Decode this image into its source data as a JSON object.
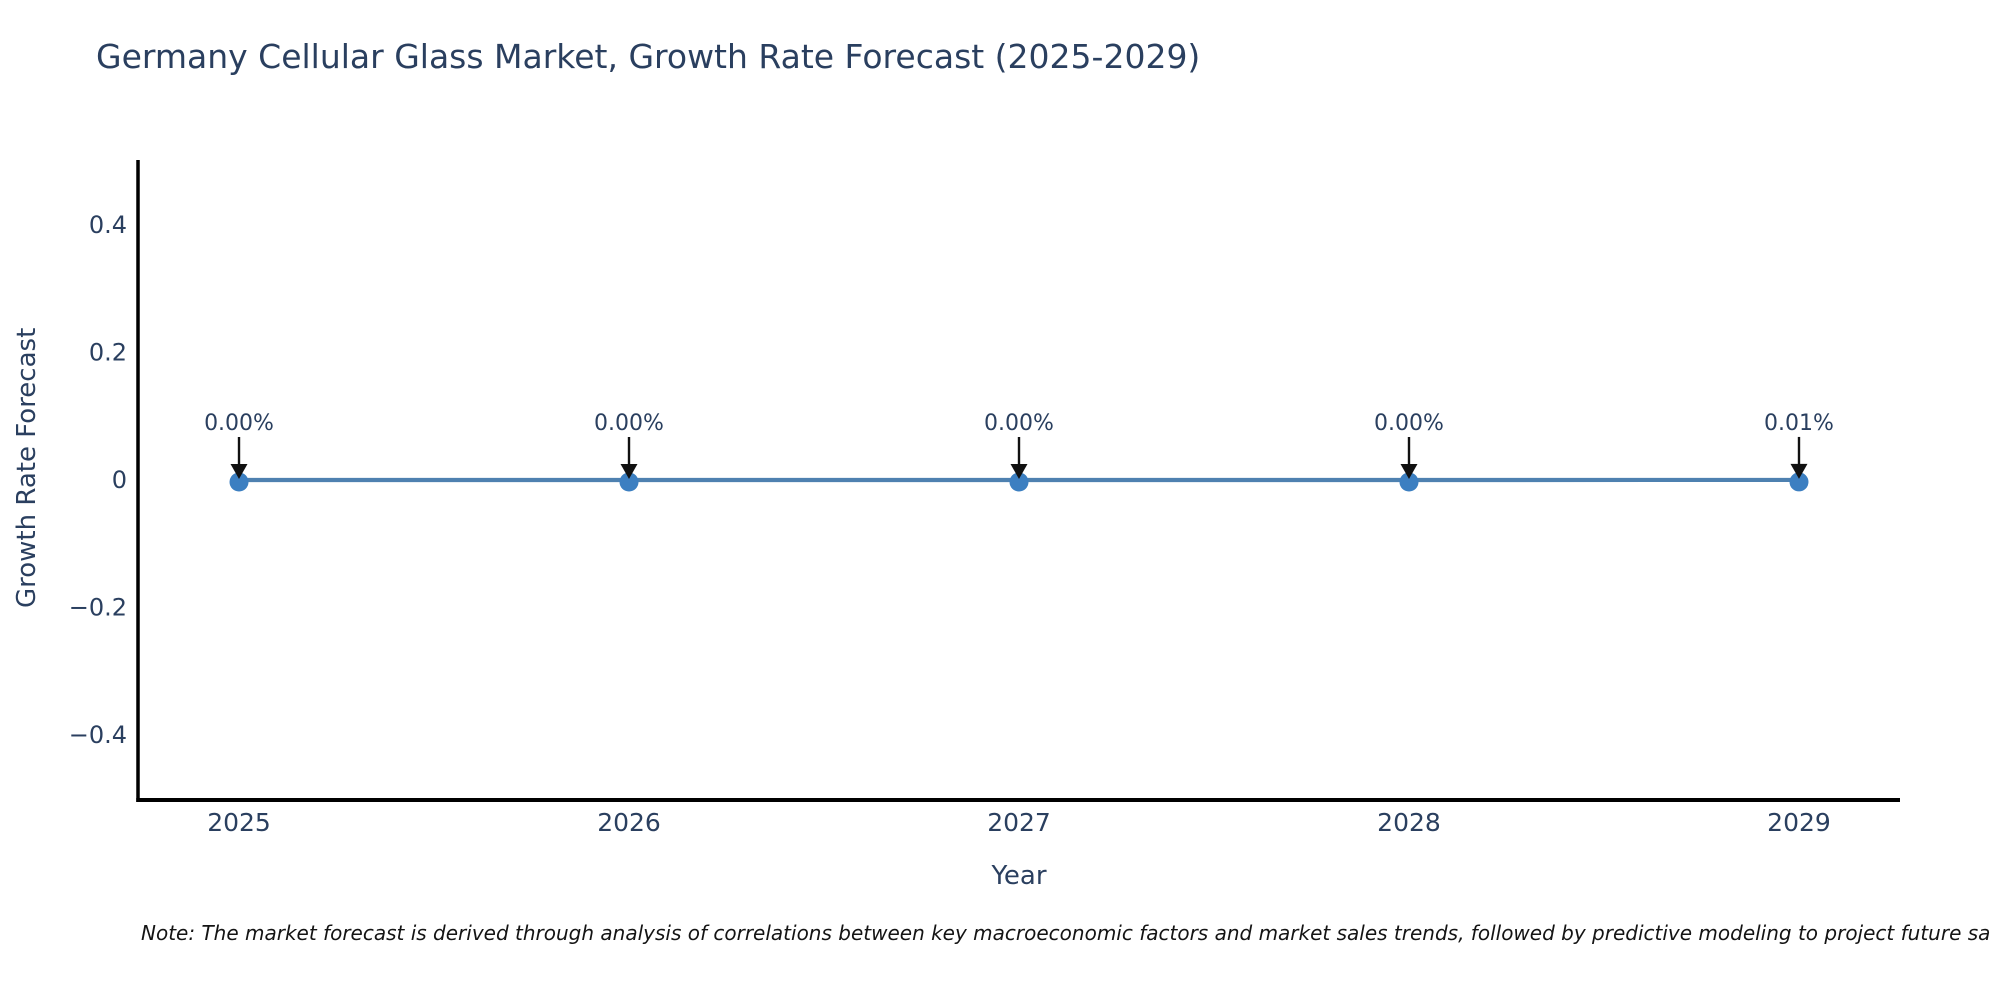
{
  "title": "Germany Cellular Glass Market, Growth Rate Forecast (2025-2029)",
  "note": "Note: The market forecast is derived through analysis of correlations between key macroeconomic factors and market sales trends, followed by predictive modeling to project future sa",
  "colors": {
    "background": "#ffffff",
    "title_text": "#2a3f5f",
    "axis_text": "#2a3f5f",
    "line": "#4e81b0",
    "marker": "#3c7fc1",
    "spine": "#000000",
    "arrow": "#111111",
    "note_text": "#141414"
  },
  "chart_data": {
    "type": "line",
    "title": "Germany Cellular Glass Market, Growth Rate Forecast (2025-2029)",
    "xlabel": "Year",
    "ylabel": "Growth Rate Forecast",
    "x": [
      2025,
      2026,
      2027,
      2028,
      2029
    ],
    "series": [
      {
        "name": "Growth Rate Forecast",
        "values_percent": [
          0.0,
          0.0,
          0.0,
          0.0,
          0.01
        ]
      }
    ],
    "point_labels": [
      "0.00%",
      "0.00%",
      "0.00%",
      "0.00%",
      "0.01%"
    ],
    "xtick_labels": [
      "2025",
      "2026",
      "2027",
      "2028",
      "2029"
    ],
    "ytick_labels": [
      "0.4",
      "0.2",
      "0",
      "−0.2",
      "−0.4"
    ],
    "ytick_values": [
      0.4,
      0.2,
      0,
      -0.2,
      -0.4
    ],
    "xlim": [
      2024.741,
      2029.259
    ],
    "ylim": [
      -0.5,
      0.5
    ],
    "grid": false,
    "legend": "none",
    "marker_style": "circle",
    "annotation_arrows": "down-to-point",
    "spines": [
      "left",
      "bottom"
    ]
  }
}
